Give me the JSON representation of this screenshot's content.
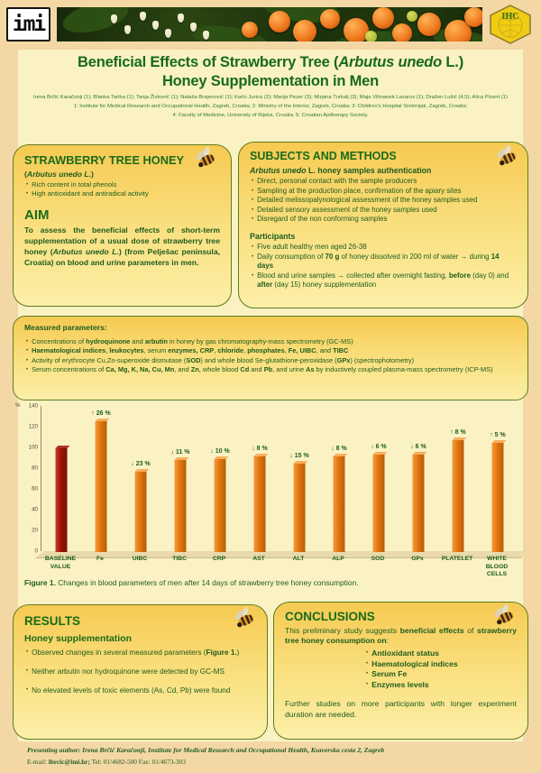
{
  "ui": {
    "bullet": "•"
  },
  "colors": {
    "background": "#F3D8A6",
    "panel": "#FAF2C3",
    "box_border": "#5E7C1F",
    "heading_green": "#1A6B1A",
    "text_green": "#1E5C1E",
    "bar_orange": "#E2760F",
    "bar_baseline_red": "#9E1208"
  },
  "header": {
    "logo_left": "imi",
    "logo_right": "IHC"
  },
  "title": {
    "line1": [
      {
        "t": "Beneficial Effects of Strawberry Tree ("
      },
      {
        "t": "Arbutus unedo",
        "i": true
      },
      {
        "t": " L.)"
      }
    ],
    "line2": "Honey Supplementation in Men"
  },
  "authors": {
    "line1": "Irena Brčić Karačonji (1); Blanka Tariba (1); Tanja Živković (1); Nataša Brajenović (1); Karlo Jurica (2); Marija Pezer (3); Mirjana Turkalj (3); Maja Vihnanek Lazarus (1); Dražen Lušić (4,5); Alica Pizent (1)",
    "line2": "1: Institute for Medical Research and Occupational Health, Zagreb, Croatia; 2: Ministry of the Interior, Zagreb, Croatia; 3: Children's Hospital Srebrnjak, Zagreb, Croatia;",
    "line3": "4: Faculty of Medicine, University of Rijeka, Croatia; 5: Croatian Apitherapy Society."
  },
  "honey_box": {
    "heading": "STRAWBERRY TREE HONEY",
    "subtitle": [
      {
        "t": "(",
        "b": true
      },
      {
        "t": "Arbutus unedo L.",
        "b": true,
        "i": true
      },
      {
        "t": ")",
        "b": true
      }
    ],
    "bullets": [
      [
        {
          "t": "Rich content in total phenols"
        }
      ],
      [
        {
          "t": "High antioxidant and antiradical activity"
        }
      ]
    ],
    "aim_heading": "AIM",
    "aim_text": [
      {
        "t": "To assess the beneficial effects of short-term supplementation of a usual dose of strawberry tree honey (",
        "b": true
      },
      {
        "t": "Arbutus unedo L.",
        "b": true,
        "i": true
      },
      {
        "t": ") (from Pelješac peninsula, Croatia) on blood and urine parameters in men.",
        "b": true
      }
    ]
  },
  "subjects_box": {
    "heading": "SUBJECTS AND METHODS",
    "sub1": [
      {
        "t": "Arbutus unedo",
        "b": true,
        "i": true
      },
      {
        "t": " L. honey samples authentication",
        "b": true
      }
    ],
    "bullets1": [
      [
        {
          "t": "Direct, personal contact with the sample producers"
        }
      ],
      [
        {
          "t": "Sampling at the production place, confirmation of the apiary sites"
        }
      ],
      [
        {
          "t": "Detailed melissopalynological assessment of the honey samples used"
        }
      ],
      [
        {
          "t": "Detailed sensory assessment of the honey samples used"
        }
      ],
      [
        {
          "t": "Disregard of the non conforming samples"
        }
      ]
    ],
    "sub2": "Participants",
    "bullets2": [
      [
        {
          "t": "Five adult healthy men aged 26-38"
        }
      ],
      [
        {
          "t": "Daily consumption of "
        },
        {
          "t": "70 g",
          "b": true
        },
        {
          "t": " of honey dissolved in 200 ml of water → during "
        },
        {
          "t": "14 days",
          "b": true
        }
      ],
      [
        {
          "t": "Blood and urine samples →  collected after overnight fasting, "
        },
        {
          "t": "before",
          "b": true
        },
        {
          "t": " (day 0) and "
        },
        {
          "t": "after",
          "b": true
        },
        {
          "t": " (day 15) honey supplementation"
        }
      ]
    ]
  },
  "measured_box": {
    "heading": "Measured parameters:",
    "bullets": [
      [
        {
          "t": "Concentrations of "
        },
        {
          "t": "hydroquinone",
          "b": true
        },
        {
          "t": " and "
        },
        {
          "t": "arbutin",
          "b": true
        },
        {
          "t": " in honey by gas chromatography-mass spectrometry (GC-MS)"
        }
      ],
      [
        {
          "t": "Haematological indices",
          "b": true
        },
        {
          "t": ", "
        },
        {
          "t": "leukocytes",
          "b": true
        },
        {
          "t": ", serum "
        },
        {
          "t": "enzymes, CRP",
          "b": true
        },
        {
          "t": ", "
        },
        {
          "t": "chloride",
          "b": true
        },
        {
          "t": ", "
        },
        {
          "t": "phosphates",
          "b": true
        },
        {
          "t": ", "
        },
        {
          "t": "Fe, UIBC",
          "b": true
        },
        {
          "t": ", and "
        },
        {
          "t": "TIBC",
          "b": true
        }
      ],
      [
        {
          "t": "Activity of erythrocyte Cu,Zn-superoxide dismutase ("
        },
        {
          "t": "SOD",
          "b": true
        },
        {
          "t": ") and whole blood Se-glutathione-peroxidase ("
        },
        {
          "t": "GPx",
          "b": true
        },
        {
          "t": ") (spectrophotometry)"
        }
      ],
      [
        {
          "t": "Serum concentrations of "
        },
        {
          "t": "Ca, Mg, K, Na, Cu, Mn",
          "b": true
        },
        {
          "t": ", and "
        },
        {
          "t": "Zn",
          "b": true
        },
        {
          "t": ", whole blood "
        },
        {
          "t": "Cd",
          "b": true
        },
        {
          "t": " and "
        },
        {
          "t": "Pb",
          "b": true
        },
        {
          "t": ", and urine "
        },
        {
          "t": "As",
          "b": true
        },
        {
          "t": " by inductively coupled plasma-mass spectrometry (ICP-MS)"
        }
      ]
    ]
  },
  "chart_data": {
    "type": "bar",
    "title": "",
    "ylabel": "%",
    "xlabel": "",
    "ylim": [
      0,
      140
    ],
    "yticks": [
      0,
      20,
      40,
      60,
      80,
      100,
      120,
      140
    ],
    "grid": false,
    "legend": null,
    "categories": [
      "BASELINE\nVALUE",
      "Fe",
      "UIBC",
      "TIBC",
      "CRP",
      "AST",
      "ALT",
      "ALP",
      "SOD",
      "GPx",
      "PLATELET",
      "WHITE\nBLOOD\nCELLS"
    ],
    "values": [
      100,
      126,
      77,
      89,
      90,
      92,
      85,
      92,
      94,
      94,
      108,
      105
    ],
    "change_labels": [
      "",
      "↑ 26 %",
      "↓ 23 %",
      "↓ 11 %",
      "↓ 10 %",
      "↓ 8 %",
      "↓ 15 %",
      "↓ 8 %",
      "↓ 6 %",
      "↓ 6 %",
      "↑ 8 %",
      "↑ 5 %"
    ],
    "bar_color": "#E2760F",
    "baseline_color": "#9E1208"
  },
  "figure_caption": [
    {
      "t": "Figure 1.",
      "b": true
    },
    {
      "t": " Changes in blood parameters of men after 14 days of strawberry tree honey consumption."
    }
  ],
  "results_box": {
    "heading": "RESULTS",
    "sub": "Honey supplementation",
    "bullets": [
      [
        {
          "t": "Observed changes in several measured parameters  ("
        },
        {
          "t": "Figure 1.",
          "b": true
        },
        {
          "t": ")"
        }
      ],
      [
        {
          "t": "Neither arbutin nor hydroquinone were detected by GC-MS"
        }
      ],
      [
        {
          "t": "No elevated levels of toxic elements  (As, Cd, Pb) were found"
        }
      ]
    ]
  },
  "conclusions_box": {
    "heading": "CONCLUSIONS",
    "para1": [
      {
        "t": "This preliminary study suggests "
      },
      {
        "t": "beneficial effects",
        "b": true
      },
      {
        "t": " of "
      },
      {
        "t": "strawberry tree honey consumption on",
        "b": true
      },
      {
        "t": ":"
      }
    ],
    "bullets": [
      [
        {
          "t": "Antioxidant status",
          "b": true
        }
      ],
      [
        {
          "t": "Haematological indices",
          "b": true
        }
      ],
      [
        {
          "t": "Serum Fe",
          "b": true
        }
      ],
      [
        {
          "t": "Enzymes levels",
          "b": true
        }
      ]
    ],
    "para2": [
      {
        "t": "Further studies on more participants with longer experiment duration are needed."
      }
    ]
  },
  "footer": {
    "line1": [
      {
        "t": "Presenting author: Irena Brčić Karačonji, Institute for Medical Research and Occupational Health, Ksaverska cesta 2, Zagreb",
        "b": true,
        "i": true
      }
    ],
    "line2": [
      {
        "t": "E-mail: "
      },
      {
        "t": "ibrcic@imi.hr;",
        "b": true
      },
      {
        "t": " Tel: 01/4682-500 Fax: 01/4673-303"
      }
    ]
  }
}
